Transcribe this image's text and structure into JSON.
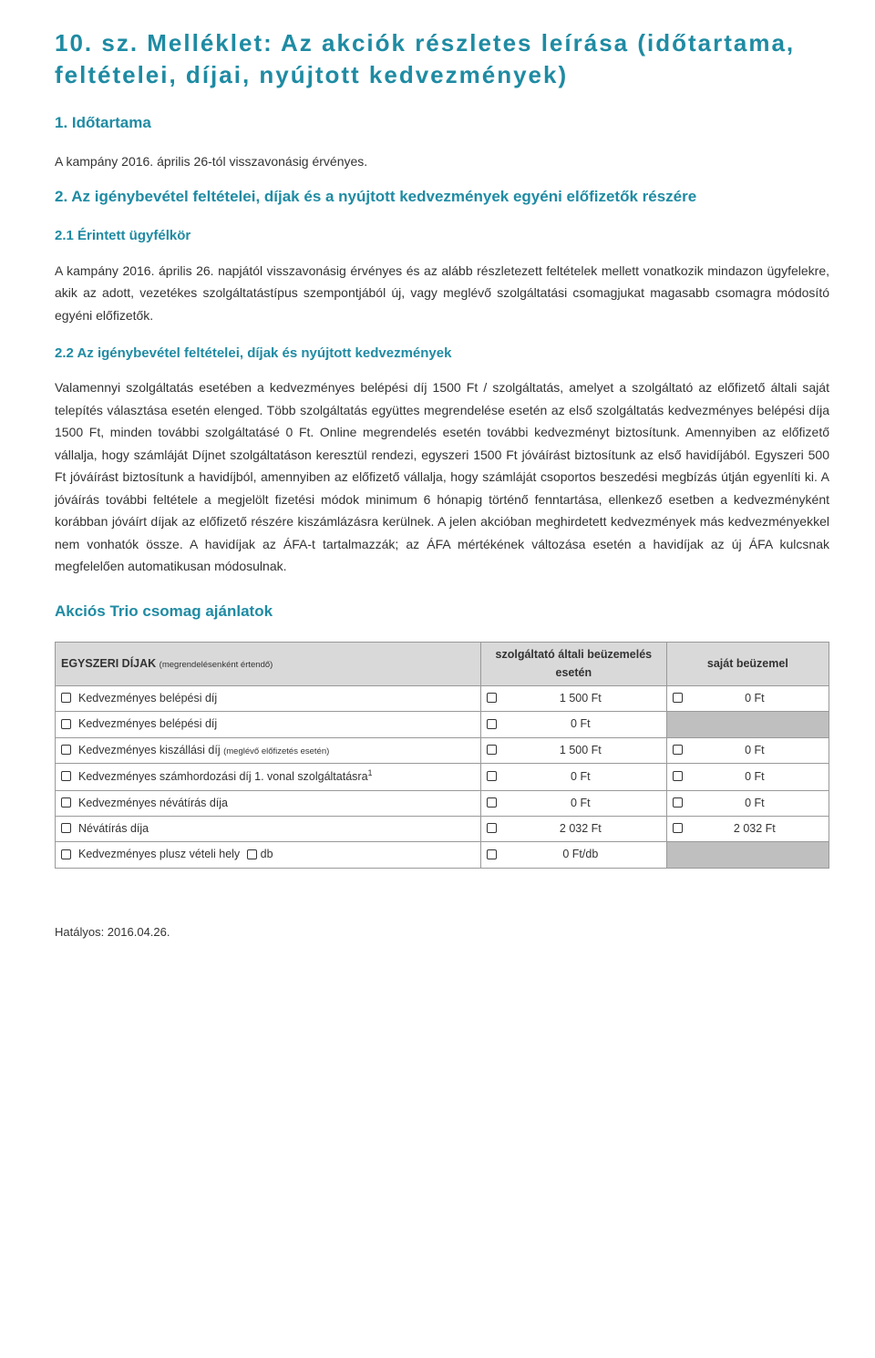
{
  "title": "10. sz. Melléklet: Az akciók részletes leírása (időtartama, feltételei, díjai, nyújtott kedvezmények)",
  "section1": {
    "heading": "1.    Időtartama",
    "text": "A kampány 2016. április 26-tól visszavonásig érvényes."
  },
  "section2": {
    "heading": "2. Az igénybevétel feltételei, díjak és a nyújtott kedvezmények egyéni előfizetők részére",
    "sub1": {
      "heading": "2.1 Érintett ügyfélkör",
      "text": "A kampány 2016. április 26. napjától visszavonásig érvényes és az alább részletezett feltételek mellett vonatkozik mindazon ügyfelekre, akik az adott, vezetékes szolgáltatástípus szempontjából új, vagy meglévő szolgáltatási csomagjukat magasabb csomagra módosító egyéni előfizetők."
    },
    "sub2": {
      "heading": "2.2 Az igénybevétel feltételei, díjak és nyújtott kedvezmények",
      "text": "Valamennyi szolgáltatás esetében a kedvezményes belépési díj 1500 Ft / szolgáltatás, amelyet a szolgáltató az előfizető általi saját telepítés választása esetén elenged. Több szolgáltatás együttes megrendelése esetén az első szolgáltatás kedvezményes belépési díja 1500 Ft, minden további szolgáltatásé 0 Ft. Online megrendelés esetén további kedvezményt biztosítunk. Amennyiben az előfizető vállalja, hogy számláját Díjnet szolgáltatáson keresztül rendezi, egyszeri 1500 Ft jóváírást biztosítunk az első havidíjából. Egyszeri 500 Ft jóváírást biztosítunk a havidíjból, amennyiben az előfizető vállalja, hogy számláját csoportos beszedési megbízás útján egyenlíti ki. A jóváírás további feltétele a megjelölt fizetési módok minimum 6 hónapig történő fenntartása, ellenkező esetben a kedvezményként korábban jóváírt díjak az előfizető részére kiszámlázásra kerülnek. A jelen akcióban meghirdetett kedvezmények más kedvezményekkel nem vonhatók össze. A havidíjak az ÁFA-t tartalmazzák; az ÁFA mértékének változása esetén a havidíjak az új ÁFA kulcsnak megfelelően automatikusan módosulnak."
    }
  },
  "offers": {
    "title": "Akciós Trio csomag ajánlatok",
    "table": {
      "header_label": "EGYSZERI DÍJAK ",
      "header_label_note": "(megrendelésenként értendő)",
      "col1": "szolgáltató általi beüzemelés esetén",
      "col2": "saját beüzemel",
      "rows": [
        {
          "label": "Kedvezményes belépési díj",
          "c1": "1 500 Ft",
          "c2": "0 Ft",
          "has_db": false,
          "c2_shaded": false
        },
        {
          "label": "Kedvezményes belépési díj",
          "c1": "0 Ft",
          "c2": "",
          "has_db": false,
          "c2_shaded": true
        },
        {
          "label": "Kedvezményes kiszállási díj ",
          "note": "(meglévő előfizetés esetén)",
          "c1": "1 500 Ft",
          "c2": "0 Ft",
          "has_db": false,
          "c2_shaded": false
        },
        {
          "label": "Kedvezményes számhordozási díj 1. vonal szolgáltatásra",
          "sup": "1",
          "c1": "0 Ft",
          "c2": "0 Ft",
          "has_db": false,
          "c2_shaded": false
        },
        {
          "label": "Kedvezményes névátírás díja",
          "c1": "0 Ft",
          "c2": "0 Ft",
          "has_db": false,
          "c2_shaded": false
        },
        {
          "label": "Névátírás díja",
          "c1": "2 032 Ft",
          "c2": "2 032 Ft",
          "has_db": false,
          "c2_shaded": false
        },
        {
          "label": "Kedvezményes plusz vételi hely",
          "db": "db",
          "c1": "0 Ft/db",
          "c2": "",
          "has_db": true,
          "c2_shaded": true
        }
      ]
    }
  },
  "footer": "Hatályos: 2016.04.26."
}
